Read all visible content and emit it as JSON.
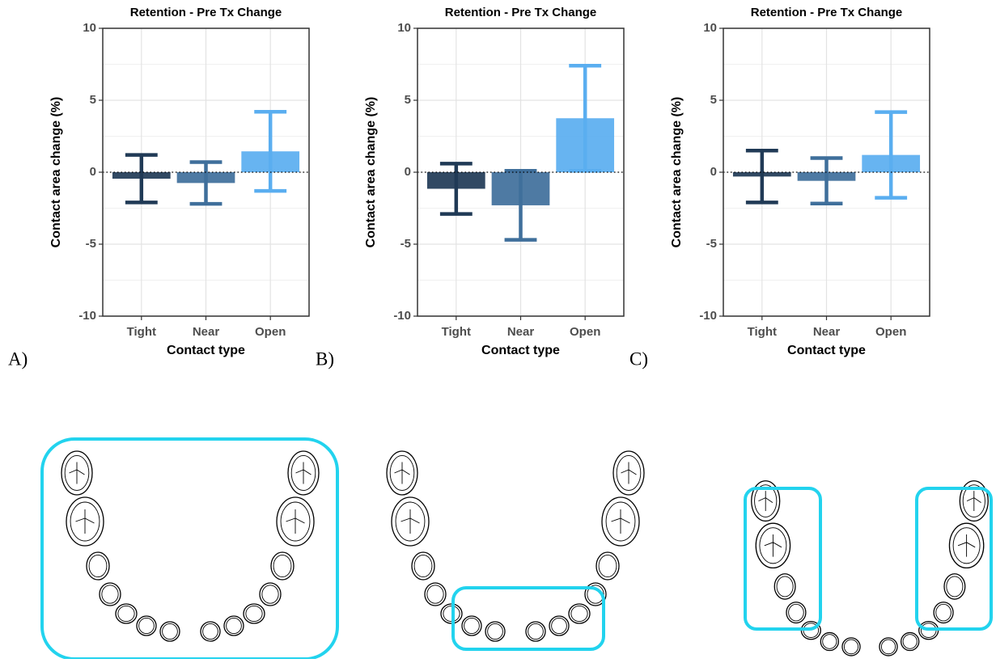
{
  "chart_data": [
    {
      "type": "bar",
      "label": "A)",
      "title": "Retention - Pre Tx Change",
      "x_label": "Contact type",
      "y_label": "Contact area change (%)",
      "categories": [
        "Tight",
        "Near",
        "Open"
      ],
      "values": [
        -0.45,
        -0.75,
        1.45
      ],
      "errors": [
        1.65,
        1.45,
        2.75
      ],
      "colors": [
        "#203a56",
        "#3f6f9b",
        "#5aaef0"
      ],
      "ylim": [
        -10,
        10
      ],
      "yticks": [
        -10,
        -5,
        0,
        5,
        10
      ],
      "minor_yticks": [
        -7.5,
        -2.5,
        2.5,
        7.5
      ],
      "grid": true,
      "reference_line": 0
    },
    {
      "type": "bar",
      "label": "B)",
      "title": "Retention - Pre Tx Change",
      "x_label": "Contact type",
      "y_label": "Contact area change (%)",
      "categories": [
        "Tight",
        "Near",
        "Open"
      ],
      "values": [
        -1.15,
        -2.3,
        3.75
      ],
      "errors": [
        1.75,
        2.4,
        3.65
      ],
      "colors": [
        "#203a56",
        "#3f6f9b",
        "#5aaef0"
      ],
      "ylim": [
        -10,
        10
      ],
      "yticks": [
        -10,
        -5,
        0,
        5,
        10
      ],
      "minor_yticks": [
        -7.5,
        -2.5,
        2.5,
        7.5
      ],
      "grid": true,
      "reference_line": 0
    },
    {
      "type": "bar",
      "label": "C)",
      "title": "Retention - Pre Tx Change",
      "x_label": "Contact type",
      "y_label": "Contact area change (%)",
      "categories": [
        "Tight",
        "Near",
        "Open"
      ],
      "values": [
        -0.3,
        -0.6,
        1.2
      ],
      "errors": [
        1.8,
        1.58,
        2.98
      ],
      "colors": [
        "#203a56",
        "#3f6f9b",
        "#5aaef0"
      ],
      "ylim": [
        -10,
        10
      ],
      "yticks": [
        -10,
        -5,
        0,
        5,
        10
      ],
      "minor_yticks": [
        -7.5,
        -2.5,
        2.5,
        7.5
      ],
      "grid": true,
      "reference_line": 0
    }
  ]
}
